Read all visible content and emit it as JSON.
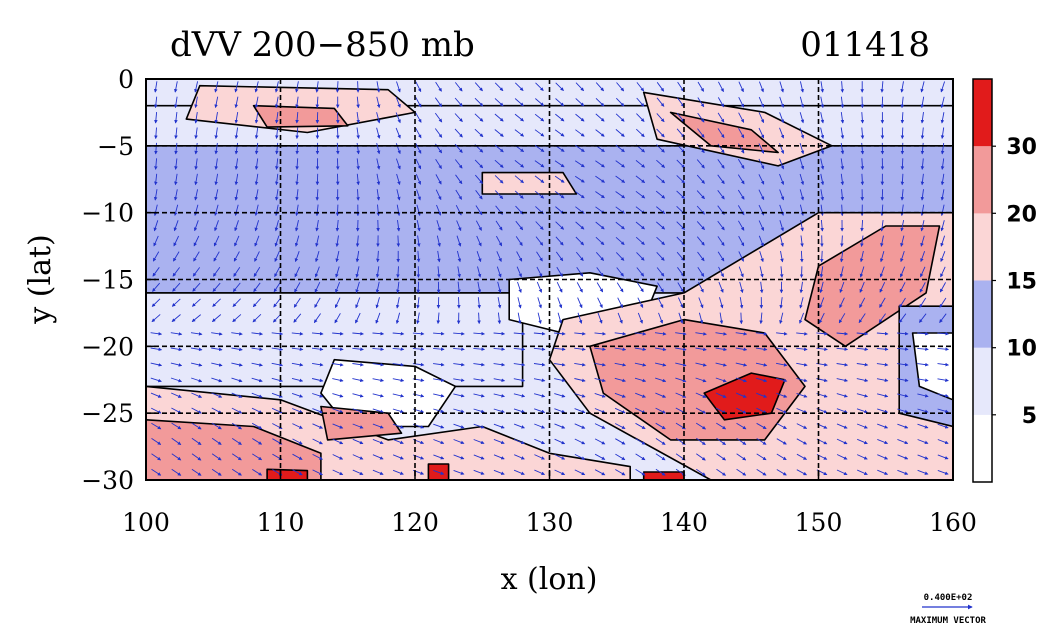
{
  "chart_data": {
    "type": "heatmap",
    "title": "dVV 200−850 mb",
    "date_label": "011418",
    "xlabel": "x (lon)",
    "ylabel": "y (lat)",
    "xlim": [
      100,
      160
    ],
    "ylim": [
      -30,
      0
    ],
    "x_ticks": [
      {
        "value": 100,
        "label": "100"
      },
      {
        "value": 110,
        "label": "110"
      },
      {
        "value": 120,
        "label": "120"
      },
      {
        "value": 130,
        "label": "130"
      },
      {
        "value": 140,
        "label": "140"
      },
      {
        "value": 150,
        "label": "150"
      },
      {
        "value": 160,
        "label": "160"
      }
    ],
    "y_ticks": [
      {
        "value": 0,
        "label": "0"
      },
      {
        "value": -5,
        "label": "−5"
      },
      {
        "value": -10,
        "label": "−10"
      },
      {
        "value": -15,
        "label": "−15"
      },
      {
        "value": -20,
        "label": "−20"
      },
      {
        "value": -25,
        "label": "−25"
      },
      {
        "value": -30,
        "label": "−30"
      }
    ],
    "grid": true,
    "colorbar": {
      "levels": [
        5,
        10,
        15,
        20,
        30
      ],
      "labels": [
        "5",
        "10",
        "15",
        "20",
        "30"
      ],
      "colors": [
        "#ffffff",
        "#e6e8fb",
        "#aab2f0",
        "#fbd6d6",
        "#f29a9a",
        "#e11b1b"
      ],
      "placement": "right"
    },
    "reference_vector": {
      "value_label": "0.400E+02",
      "label": "MAXIMUM VECTOR",
      "color": "#2233cc"
    },
    "field_regions": [
      {
        "kind": "band",
        "level_index": 2,
        "points": [
          [
            100,
            -5
          ],
          [
            160,
            -5
          ],
          [
            160,
            -16
          ],
          [
            100,
            -16
          ]
        ]
      },
      {
        "kind": "band",
        "level_index": 1,
        "points": [
          [
            100,
            -16
          ],
          [
            128,
            -16
          ],
          [
            128,
            -23
          ],
          [
            100,
            -23
          ]
        ]
      },
      {
        "kind": "blob",
        "level_index": 0,
        "points": [
          [
            127,
            -15
          ],
          [
            133,
            -14.5
          ],
          [
            138,
            -15.5
          ],
          [
            137,
            -18
          ],
          [
            131,
            -19
          ],
          [
            127,
            -18
          ]
        ]
      },
      {
        "kind": "blob",
        "level_index": 0,
        "points": [
          [
            114,
            -21
          ],
          [
            120,
            -21.5
          ],
          [
            123,
            -23
          ],
          [
            121,
            -26
          ],
          [
            115,
            -26
          ],
          [
            113,
            -23.5
          ]
        ]
      },
      {
        "kind": "band",
        "level_index": 1,
        "points": [
          [
            100,
            0
          ],
          [
            160,
            0
          ],
          [
            160,
            -2
          ],
          [
            100,
            -2
          ]
        ]
      },
      {
        "kind": "blob",
        "level_index": 3,
        "points": [
          [
            104,
            -0.5
          ],
          [
            118,
            -0.8
          ],
          [
            120,
            -2.5
          ],
          [
            112,
            -4
          ],
          [
            103,
            -3
          ]
        ]
      },
      {
        "kind": "blob",
        "level_index": 4,
        "points": [
          [
            108,
            -2
          ],
          [
            114,
            -2.2
          ],
          [
            115,
            -3.5
          ],
          [
            109,
            -3.6
          ]
        ]
      },
      {
        "kind": "blob",
        "level_index": 3,
        "points": [
          [
            137,
            -1
          ],
          [
            146,
            -2.5
          ],
          [
            151,
            -5
          ],
          [
            147,
            -6.5
          ],
          [
            138,
            -4.5
          ]
        ]
      },
      {
        "kind": "blob",
        "level_index": 4,
        "points": [
          [
            139,
            -2.5
          ],
          [
            145,
            -3.8
          ],
          [
            147,
            -5.5
          ],
          [
            142,
            -5
          ]
        ]
      },
      {
        "kind": "blob",
        "level_index": 3,
        "points": [
          [
            125,
            -7
          ],
          [
            131,
            -7
          ],
          [
            132,
            -8.6
          ],
          [
            125,
            -8.6
          ]
        ]
      },
      {
        "kind": "blob",
        "level_index": 3,
        "points": [
          [
            131,
            -18
          ],
          [
            140,
            -16
          ],
          [
            150,
            -10
          ],
          [
            160,
            -10
          ],
          [
            160,
            -30
          ],
          [
            142,
            -30
          ],
          [
            133,
            -25
          ],
          [
            130,
            -21
          ]
        ]
      },
      {
        "kind": "blob",
        "level_index": 4,
        "points": [
          [
            133,
            -20
          ],
          [
            140,
            -18
          ],
          [
            146,
            -19
          ],
          [
            149,
            -23
          ],
          [
            146,
            -27
          ],
          [
            139,
            -27
          ],
          [
            134,
            -23.5
          ]
        ]
      },
      {
        "kind": "blob",
        "level_index": 4,
        "points": [
          [
            150,
            -14
          ],
          [
            155,
            -11
          ],
          [
            159,
            -11
          ],
          [
            158,
            -16
          ],
          [
            152,
            -20
          ],
          [
            149,
            -18
          ]
        ]
      },
      {
        "kind": "blob",
        "level_index": 5,
        "points": [
          [
            141.5,
            -23.5
          ],
          [
            145,
            -22
          ],
          [
            147.5,
            -22.5
          ],
          [
            146.5,
            -25
          ],
          [
            143,
            -25.5
          ]
        ]
      },
      {
        "kind": "blob",
        "level_index": 2,
        "points": [
          [
            156,
            -17
          ],
          [
            160,
            -17
          ],
          [
            160,
            -26
          ],
          [
            156,
            -25
          ]
        ]
      },
      {
        "kind": "blob",
        "level_index": 0,
        "points": [
          [
            157,
            -19
          ],
          [
            160,
            -19
          ],
          [
            160,
            -24
          ],
          [
            157.5,
            -23
          ]
        ]
      },
      {
        "kind": "blob",
        "level_index": 3,
        "points": [
          [
            100,
            -23
          ],
          [
            110,
            -24
          ],
          [
            118,
            -27
          ],
          [
            125,
            -26
          ],
          [
            130,
            -28
          ],
          [
            136,
            -29
          ],
          [
            136,
            -30
          ],
          [
            100,
            -30
          ]
        ]
      },
      {
        "kind": "blob",
        "level_index": 4,
        "points": [
          [
            100,
            -25.5
          ],
          [
            108,
            -26
          ],
          [
            113,
            -28
          ],
          [
            113,
            -30
          ],
          [
            100,
            -30
          ]
        ]
      },
      {
        "kind": "blob",
        "level_index": 5,
        "points": [
          [
            109,
            -29.2
          ],
          [
            112,
            -29.3
          ],
          [
            112,
            -30
          ],
          [
            109,
            -30
          ]
        ]
      },
      {
        "kind": "blob",
        "level_index": 5,
        "points": [
          [
            121,
            -28.8
          ],
          [
            122.5,
            -28.8
          ],
          [
            122.5,
            -30
          ],
          [
            121,
            -30
          ]
        ]
      },
      {
        "kind": "blob",
        "level_index": 5,
        "points": [
          [
            137,
            -29.4
          ],
          [
            140,
            -29.4
          ],
          [
            140,
            -30
          ],
          [
            137,
            -30
          ]
        ]
      },
      {
        "kind": "blob",
        "level_index": 4,
        "points": [
          [
            113,
            -24.5
          ],
          [
            118,
            -25
          ],
          [
            119,
            -26.5
          ],
          [
            113.5,
            -27
          ]
        ]
      }
    ],
    "vector_field": {
      "nx": 40,
      "ny": 26,
      "description": "wind difference vectors"
    }
  }
}
